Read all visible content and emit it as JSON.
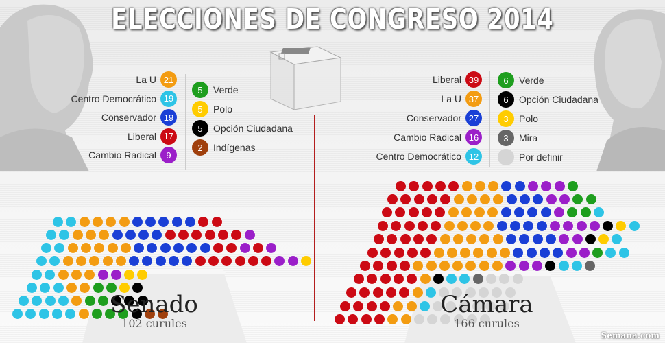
{
  "title": "ELECCIONES DE CONGRESO 2014",
  "credit": "Semana.com",
  "colors": {
    "La U": "#f39c12",
    "Centro Democrático": "#2ec4e6",
    "Conservador": "#1a3fd6",
    "Liberal": "#cc0a14",
    "Cambio Radical": "#9b1fc9",
    "Verde": "#1e9e1e",
    "Polo": "#ffcc00",
    "Opción Ciudadana": "#000000",
    "Indígenas": "#a0400d",
    "Mira": "#666666",
    "Por definir": "#d5d5d5"
  },
  "senado": {
    "name": "Senado",
    "seats_label": "102 curules",
    "legend_left": [
      {
        "party": "La U",
        "seats": "21"
      },
      {
        "party": "Centro Democrático",
        "seats": "19"
      },
      {
        "party": "Conservador",
        "seats": "19"
      },
      {
        "party": "Liberal",
        "seats": "17"
      },
      {
        "party": "Cambio Radical",
        "seats": "9"
      }
    ],
    "legend_right": [
      {
        "party": "Verde",
        "seats": "5"
      },
      {
        "party": "Polo",
        "seats": "5"
      },
      {
        "party": "Opción Ciudadana",
        "seats": "5"
      },
      {
        "party": "Indígenas",
        "seats": "2"
      }
    ]
  },
  "camara": {
    "name": "Cámara",
    "seats_label": "166 curules",
    "legend_left": [
      {
        "party": "Liberal",
        "seats": "39"
      },
      {
        "party": "La U",
        "seats": "37"
      },
      {
        "party": "Conservador",
        "seats": "27"
      },
      {
        "party": "Cambio Radical",
        "seats": "16"
      },
      {
        "party": "Centro Democrático",
        "seats": "12"
      }
    ],
    "legend_right": [
      {
        "party": "Verde",
        "seats": "6"
      },
      {
        "party": "Opción Ciudadana",
        "seats": "6"
      },
      {
        "party": "Polo",
        "seats": "3"
      },
      {
        "party": "Mira",
        "seats": "3"
      },
      {
        "party": "Por definir",
        "seats": ""
      }
    ]
  }
}
